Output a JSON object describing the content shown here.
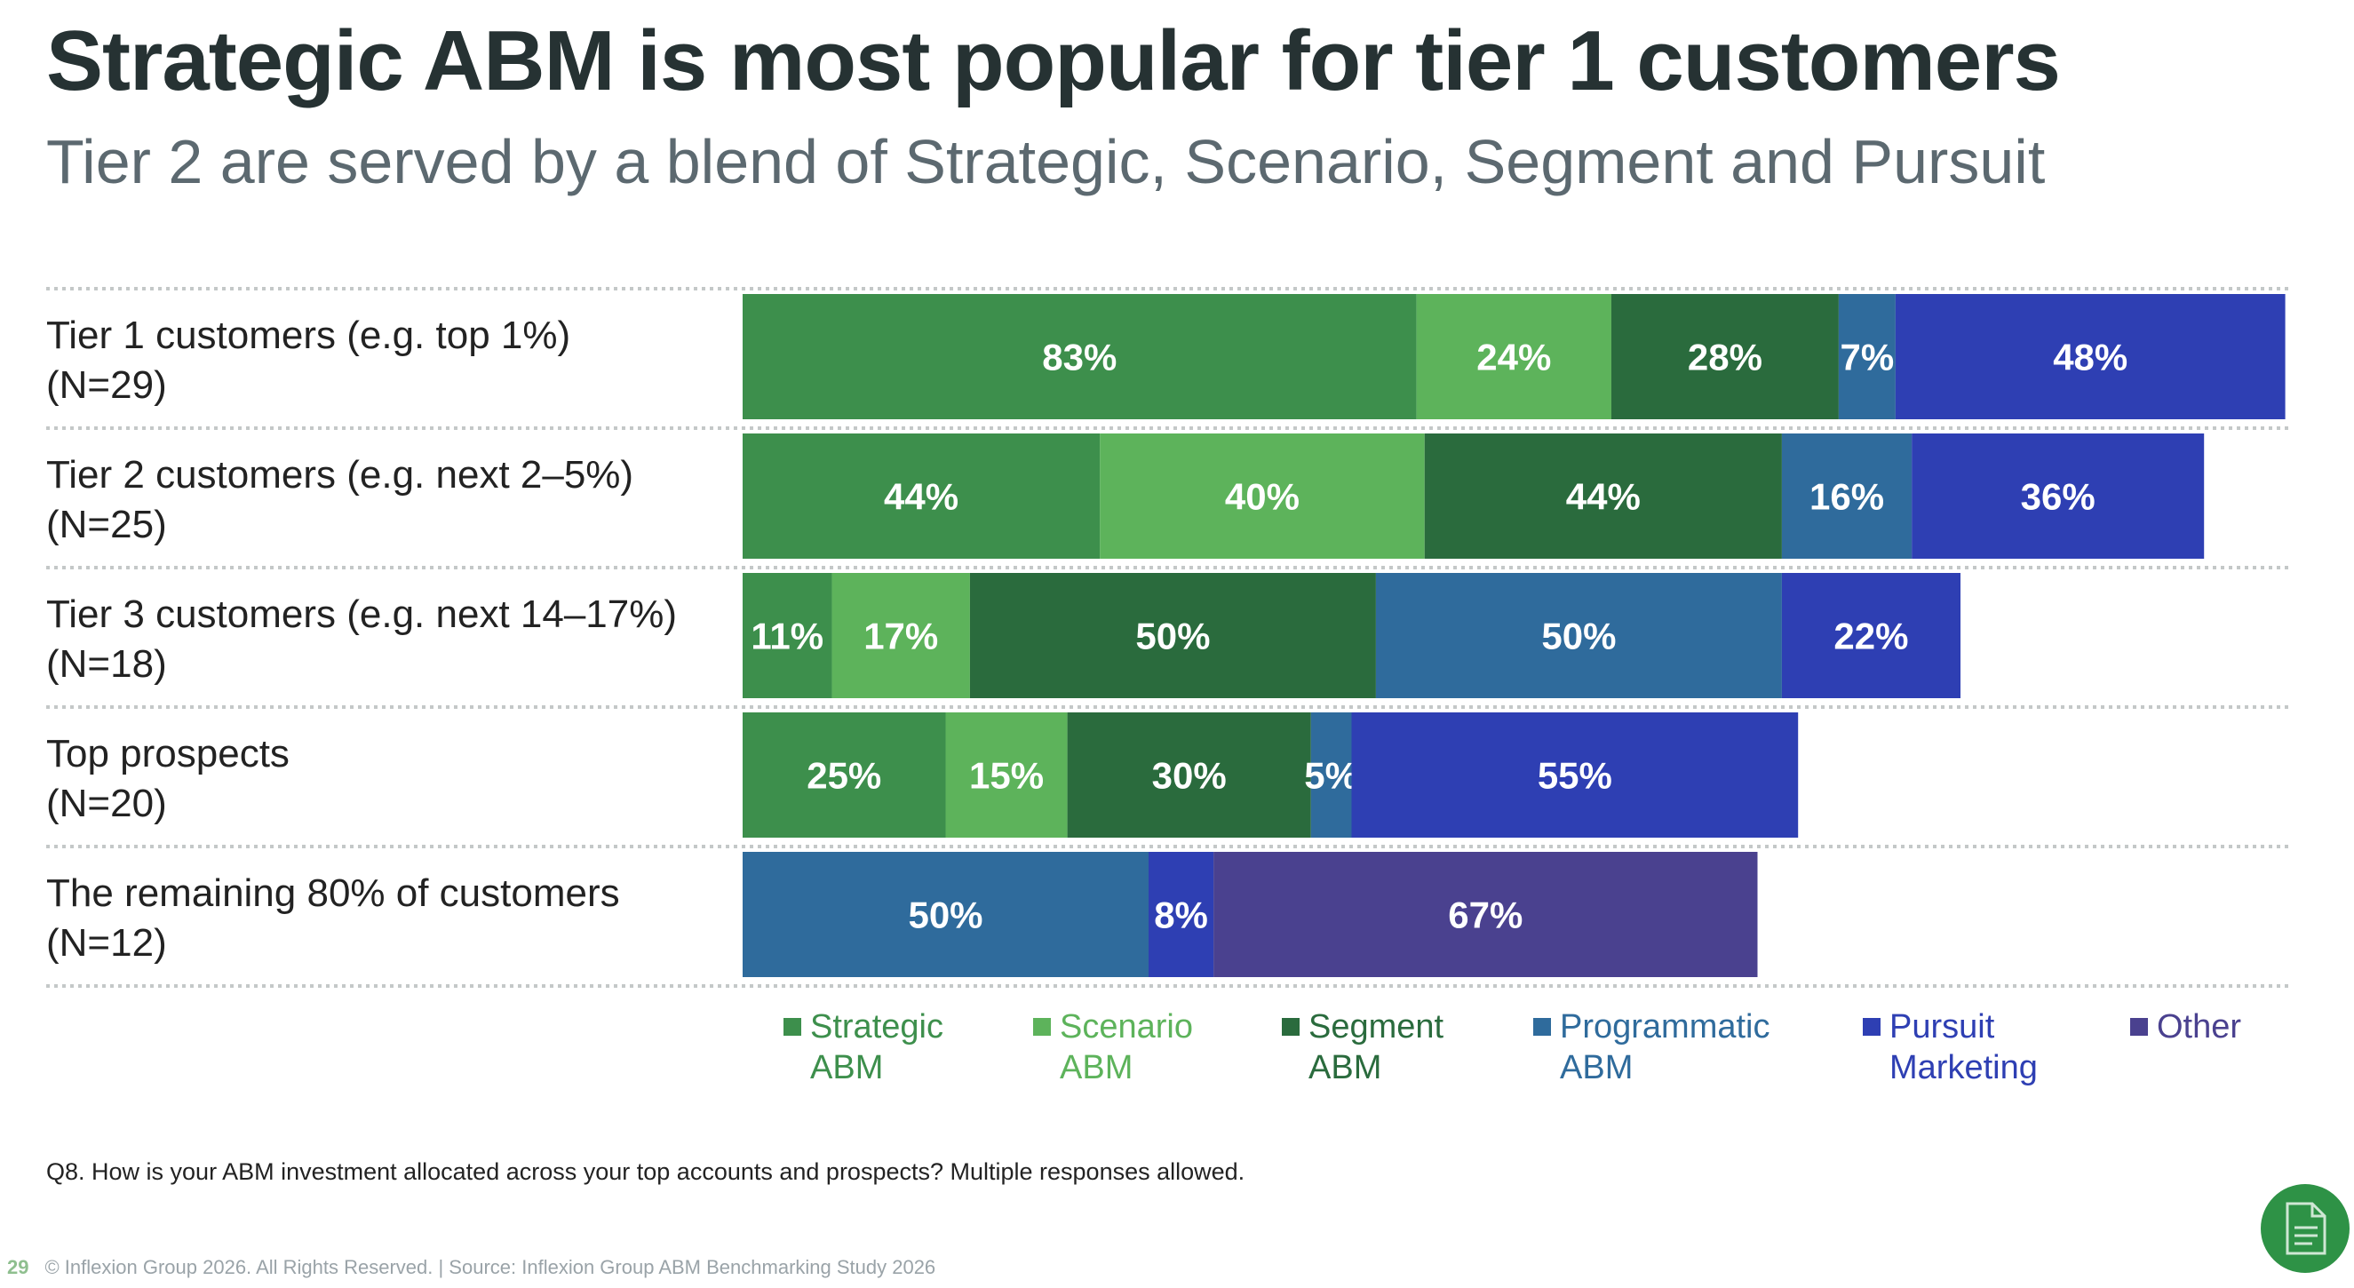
{
  "title": "Strategic ABM is most popular for tier 1 customers",
  "subtitle": "Tier 2 are served by a blend of Strategic, Scenario, Segment and Pursuit",
  "question": "Q8. How is your ABM investment allocated across your top accounts and prospects? Multiple responses allowed.",
  "footer": {
    "page_number": "29",
    "text": "© Inflexion Group 2026. All Rights Reserved. | Source: Inflexion Group ABM Benchmarking Study 2026"
  },
  "doc_button_icon": "document-icon",
  "colors": {
    "strategic": "#3d8f4c",
    "scenario": "#5db35b",
    "segment": "#2a6b3d",
    "programmatic": "#2f6b9c",
    "pursuit": "#2e3fb3",
    "other": "#4a418f",
    "separator": "#c4c8c8",
    "accent": "#2e9246"
  },
  "chart_data": {
    "type": "bar",
    "orientation": "horizontal",
    "stacked": true,
    "categories": [
      [
        "Tier 1 customers (e.g. top 1%)",
        "(N=29)"
      ],
      [
        "Tier 2 customers (e.g. next 2–5%)",
        "(N=25)"
      ],
      [
        "Tier 3 customers (e.g. next 14–17%)",
        "(N=18)"
      ],
      [
        "Top prospects",
        "(N=20)"
      ],
      [
        "The remaining 80% of customers",
        "(N=12)"
      ]
    ],
    "series": [
      {
        "name": "Strategic ABM",
        "legend": [
          "Strategic",
          "ABM"
        ],
        "color_key": "strategic",
        "values": [
          83,
          44,
          11,
          25,
          0
        ]
      },
      {
        "name": "Scenario ABM",
        "legend": [
          "Scenario",
          "ABM"
        ],
        "color_key": "scenario",
        "values": [
          24,
          40,
          17,
          15,
          0
        ]
      },
      {
        "name": "Segment ABM",
        "legend": [
          "Segment",
          "ABM"
        ],
        "color_key": "segment",
        "values": [
          28,
          44,
          50,
          30,
          0
        ]
      },
      {
        "name": "Programmatic ABM",
        "legend": [
          "Programmatic",
          "ABM"
        ],
        "color_key": "programmatic",
        "values": [
          7,
          16,
          50,
          5,
          50
        ]
      },
      {
        "name": "Pursuit Marketing",
        "legend": [
          "Pursuit",
          "Marketing"
        ],
        "color_key": "pursuit",
        "values": [
          48,
          36,
          22,
          55,
          8
        ]
      },
      {
        "name": "Other",
        "legend": [
          "Other"
        ],
        "color_key": "other",
        "values": [
          0,
          0,
          0,
          0,
          67
        ]
      }
    ],
    "unit": "%",
    "legend_position": "bottom",
    "grid": false
  }
}
